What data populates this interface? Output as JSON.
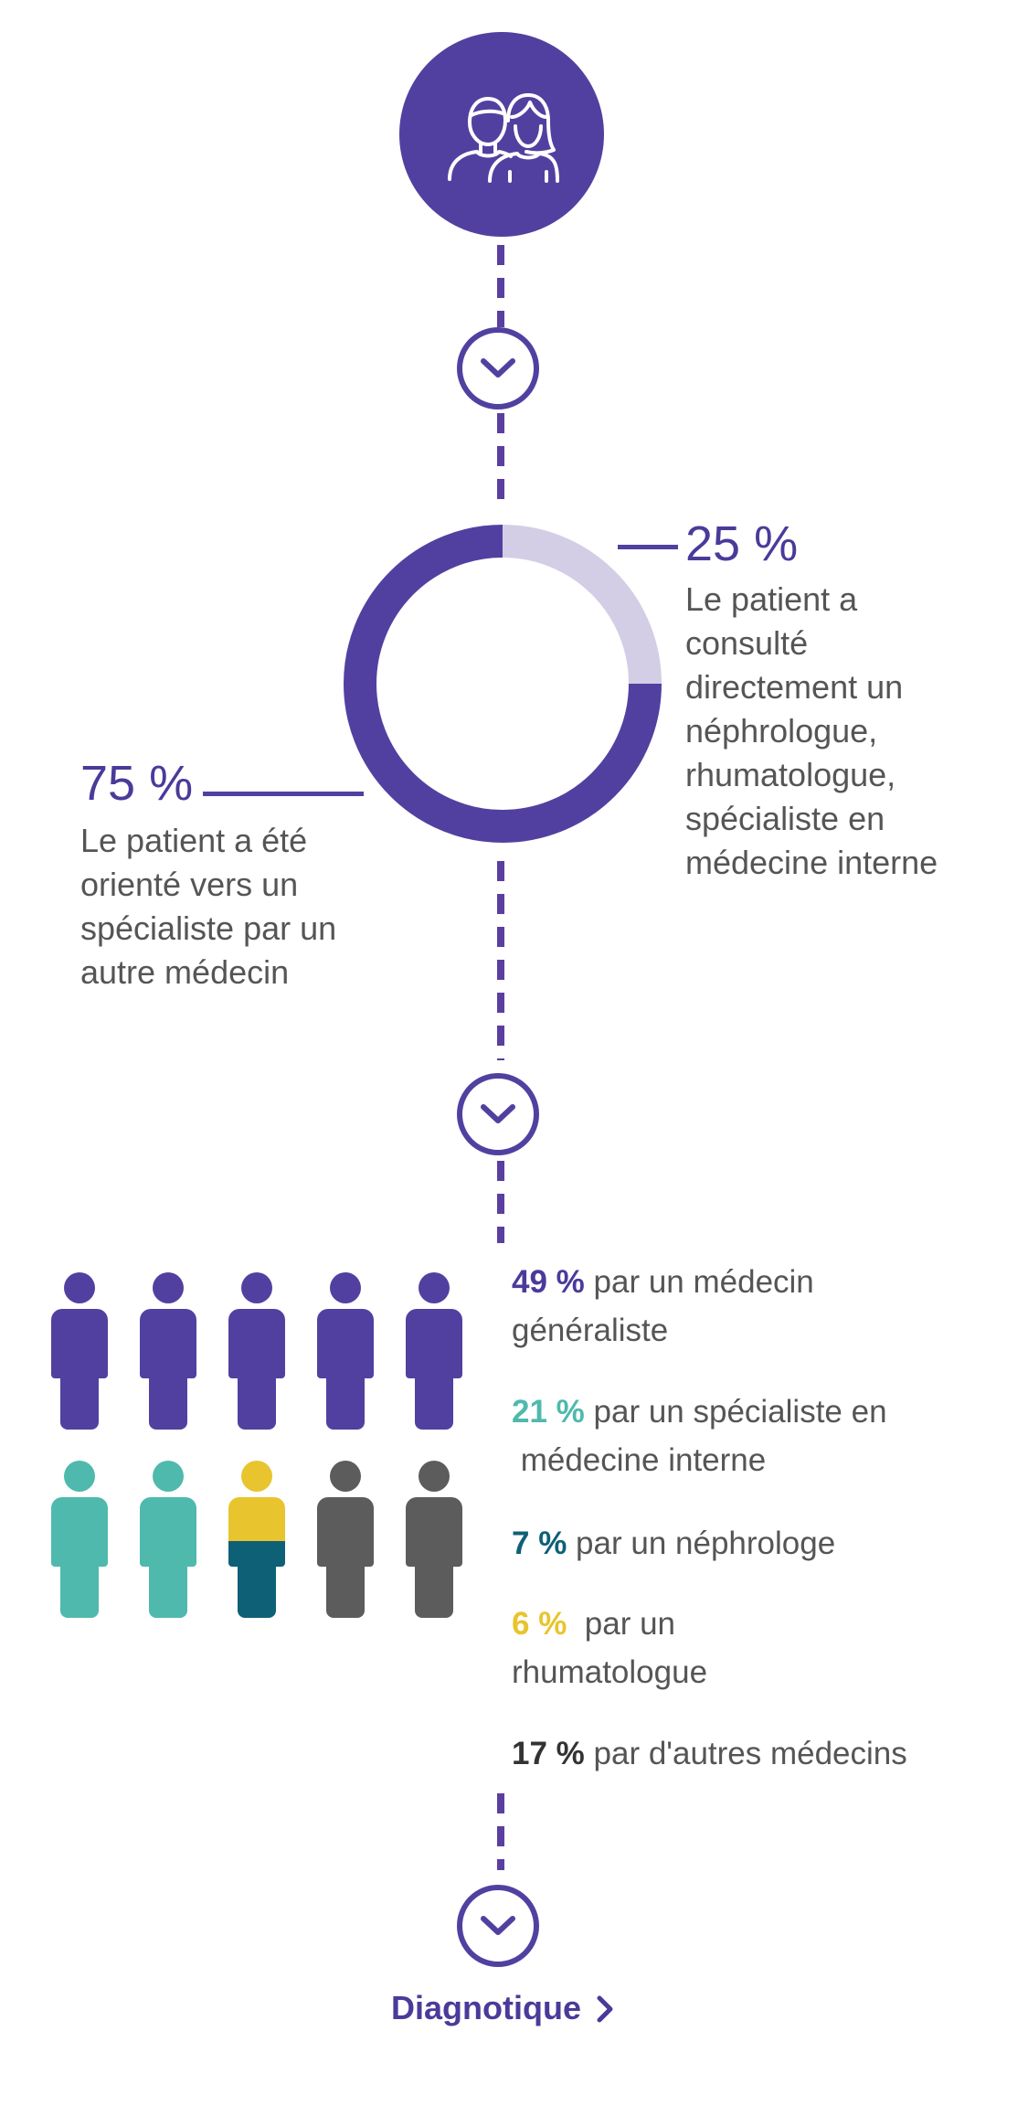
{
  "top": {
    "icon": "couple-icon"
  },
  "donut": {
    "segments": [
      {
        "label": "75 %",
        "value": 75,
        "color": "#5240a0"
      },
      {
        "label": "25 %",
        "value": 25,
        "color": "#d3cee6"
      }
    ],
    "left": {
      "pct": "75 %",
      "lines": [
        "Le patient a été",
        "orienté vers un",
        "spécialiste par un",
        "autre médecin"
      ]
    },
    "right": {
      "pct": "25 %",
      "lines": [
        "Le patient a",
        "consulté",
        "directement un",
        "néphrologue,",
        "rhumatologue,",
        "spécialiste en",
        "médecine interne"
      ]
    }
  },
  "people": {
    "rows": [
      [
        "purple",
        "purple",
        "purple",
        "purple",
        "purple"
      ],
      [
        "teal",
        "teal",
        "split",
        "gray",
        "gray"
      ]
    ],
    "colors": {
      "purple": "#5240a0",
      "teal": "#4fb9ad",
      "yellow": "#e8c42e",
      "navy": "#0e6076",
      "gray": "#5c5c5c"
    }
  },
  "stats": [
    {
      "pct": "49 %",
      "color": "#4b3a9a",
      "line1": "par un médecin",
      "line2": "généraliste"
    },
    {
      "pct": "21 %",
      "color": "#4fb9ad",
      "line1": "par un spécialiste en",
      "line2": " médecine interne"
    },
    {
      "pct": "7 %",
      "color": "#0e6076",
      "line1": "par un néphrologe",
      "line2": ""
    },
    {
      "pct": "6 %",
      "color": "#e8c42e",
      "line1": " par un",
      "line2": "rhumatologue"
    },
    {
      "pct": "17 %",
      "color": "#333333",
      "line1": "par d'autres médecins",
      "line2": ""
    }
  ],
  "footer_link": {
    "label": "Diagnotique"
  }
}
